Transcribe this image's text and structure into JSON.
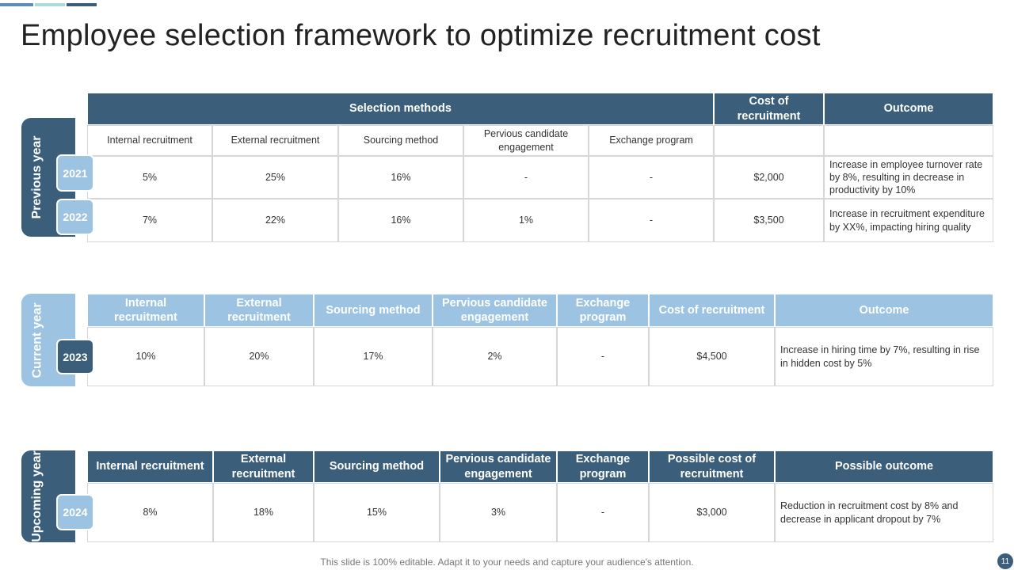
{
  "title": "Employee selection framework to optimize recruitment cost",
  "footer": "This slide is 100% editable. Adapt it to your needs and capture your audience's attention.",
  "page_number": "11",
  "sections": [
    {
      "label": "Previous year",
      "headers": [
        "Selection methods",
        "Cost of recruitment",
        "Outcome"
      ],
      "subheaders": [
        "Internal recruitment",
        "External recruitment",
        "Sourcing method",
        "Pervious candidate engagement",
        "Exchange program"
      ],
      "rows": [
        {
          "year": "2021",
          "cells": [
            "5%",
            "25%",
            "16%",
            "-",
            "-",
            "$2,000",
            "Increase in employee turnover rate by 8%, resulting in decrease in productivity by 10%"
          ]
        },
        {
          "year": "2022",
          "cells": [
            "7%",
            "22%",
            "16%",
            "1%",
            "-",
            "$3,500",
            "Increase in recruitment expenditure by XX%, impacting hiring quality"
          ]
        }
      ]
    },
    {
      "label": "Current year",
      "headers": [
        "Internal recruitment",
        "External recruitment",
        "Sourcing method",
        "Pervious candidate engagement",
        "Exchange program",
        "Cost of recruitment",
        "Outcome"
      ],
      "rows": [
        {
          "year": "2023",
          "cells": [
            "10%",
            "20%",
            "17%",
            "2%",
            "-",
            "$4,500",
            "Increase in hiring time by 7%, resulting in rise in hidden cost by 5%"
          ]
        }
      ]
    },
    {
      "label": "Upcoming year",
      "headers": [
        "Internal recruitment",
        "External recruitment",
        "Sourcing method",
        "Pervious candidate engagement",
        "Exchange program",
        "Possible cost of recruitment",
        "Possible outcome"
      ],
      "rows": [
        {
          "year": "2024",
          "cells": [
            "8%",
            "18%",
            "15%",
            "3%",
            "-",
            "$3,000",
            "Reduction in recruitment cost by 8% and decrease in applicant dropout by 7%"
          ]
        }
      ]
    }
  ]
}
